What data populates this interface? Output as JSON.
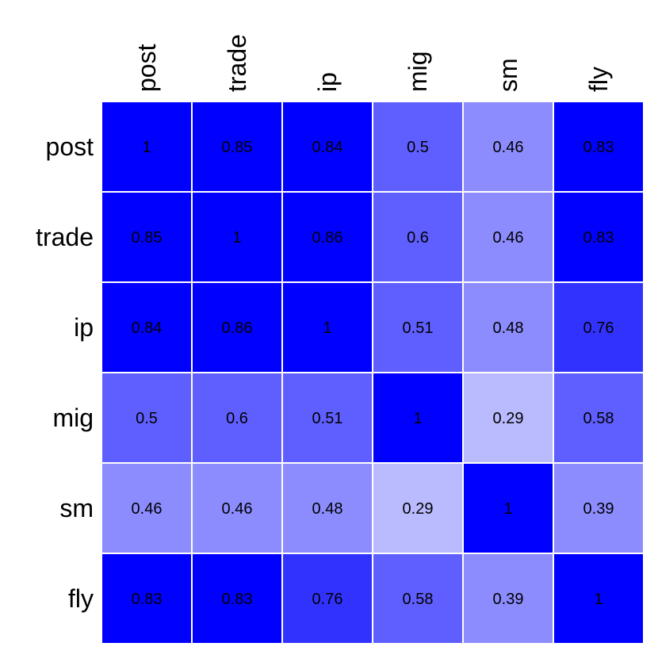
{
  "chart_data": {
    "type": "heatmap",
    "title": "",
    "xlabel": "",
    "ylabel": "",
    "legend": "none",
    "rows": [
      "post",
      "trade",
      "ip",
      "mig",
      "sm",
      "fly"
    ],
    "columns": [
      "post",
      "trade",
      "ip",
      "mig",
      "sm",
      "fly"
    ],
    "values": [
      [
        1,
        0.85,
        0.84,
        0.5,
        0.46,
        0.83
      ],
      [
        0.85,
        1,
        0.86,
        0.6,
        0.46,
        0.83
      ],
      [
        0.84,
        0.86,
        1,
        0.51,
        0.48,
        0.76
      ],
      [
        0.5,
        0.6,
        0.51,
        1,
        0.29,
        0.58
      ],
      [
        0.46,
        0.46,
        0.48,
        0.29,
        1,
        0.39
      ],
      [
        0.83,
        0.83,
        0.76,
        0.58,
        0.39,
        1
      ]
    ],
    "color_levels": [
      {
        "min": 0.8,
        "color": "#0000ff"
      },
      {
        "min": 0.7,
        "color": "#3232ff"
      },
      {
        "min": 0.5,
        "color": "#5f5fff"
      },
      {
        "min": 0.35,
        "color": "#8c8cff"
      },
      {
        "min": 0,
        "color": "#babaff"
      }
    ],
    "grid_color": "#ffffff"
  }
}
